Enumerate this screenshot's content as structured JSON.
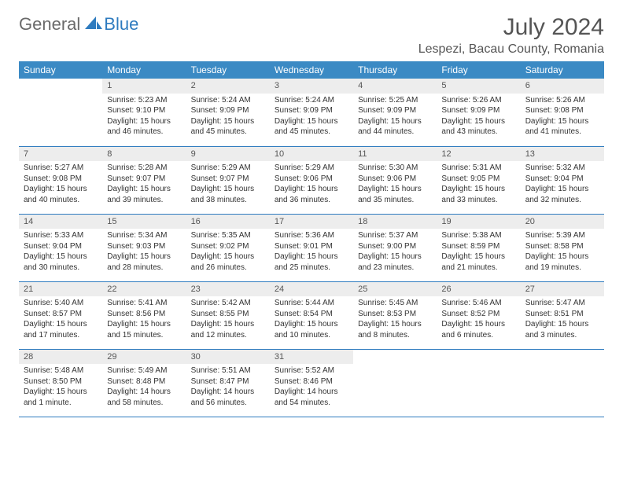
{
  "logo": {
    "text1": "General",
    "text2": "Blue"
  },
  "title": "July 2024",
  "location": "Lespezi, Bacau County, Romania",
  "colors": {
    "header_bg": "#3b8ac4",
    "header_text": "#ffffff",
    "daynum_bg": "#ededed",
    "border": "#2e7bbf",
    "logo_gray": "#6a6a6a",
    "logo_blue": "#2e7bbf"
  },
  "weekdays": [
    "Sunday",
    "Monday",
    "Tuesday",
    "Wednesday",
    "Thursday",
    "Friday",
    "Saturday"
  ],
  "days": [
    {
      "n": "",
      "sr": "",
      "ss": "",
      "dl": ""
    },
    {
      "n": "1",
      "sr": "Sunrise: 5:23 AM",
      "ss": "Sunset: 9:10 PM",
      "dl": "Daylight: 15 hours and 46 minutes."
    },
    {
      "n": "2",
      "sr": "Sunrise: 5:24 AM",
      "ss": "Sunset: 9:09 PM",
      "dl": "Daylight: 15 hours and 45 minutes."
    },
    {
      "n": "3",
      "sr": "Sunrise: 5:24 AM",
      "ss": "Sunset: 9:09 PM",
      "dl": "Daylight: 15 hours and 45 minutes."
    },
    {
      "n": "4",
      "sr": "Sunrise: 5:25 AM",
      "ss": "Sunset: 9:09 PM",
      "dl": "Daylight: 15 hours and 44 minutes."
    },
    {
      "n": "5",
      "sr": "Sunrise: 5:26 AM",
      "ss": "Sunset: 9:09 PM",
      "dl": "Daylight: 15 hours and 43 minutes."
    },
    {
      "n": "6",
      "sr": "Sunrise: 5:26 AM",
      "ss": "Sunset: 9:08 PM",
      "dl": "Daylight: 15 hours and 41 minutes."
    },
    {
      "n": "7",
      "sr": "Sunrise: 5:27 AM",
      "ss": "Sunset: 9:08 PM",
      "dl": "Daylight: 15 hours and 40 minutes."
    },
    {
      "n": "8",
      "sr": "Sunrise: 5:28 AM",
      "ss": "Sunset: 9:07 PM",
      "dl": "Daylight: 15 hours and 39 minutes."
    },
    {
      "n": "9",
      "sr": "Sunrise: 5:29 AM",
      "ss": "Sunset: 9:07 PM",
      "dl": "Daylight: 15 hours and 38 minutes."
    },
    {
      "n": "10",
      "sr": "Sunrise: 5:29 AM",
      "ss": "Sunset: 9:06 PM",
      "dl": "Daylight: 15 hours and 36 minutes."
    },
    {
      "n": "11",
      "sr": "Sunrise: 5:30 AM",
      "ss": "Sunset: 9:06 PM",
      "dl": "Daylight: 15 hours and 35 minutes."
    },
    {
      "n": "12",
      "sr": "Sunrise: 5:31 AM",
      "ss": "Sunset: 9:05 PM",
      "dl": "Daylight: 15 hours and 33 minutes."
    },
    {
      "n": "13",
      "sr": "Sunrise: 5:32 AM",
      "ss": "Sunset: 9:04 PM",
      "dl": "Daylight: 15 hours and 32 minutes."
    },
    {
      "n": "14",
      "sr": "Sunrise: 5:33 AM",
      "ss": "Sunset: 9:04 PM",
      "dl": "Daylight: 15 hours and 30 minutes."
    },
    {
      "n": "15",
      "sr": "Sunrise: 5:34 AM",
      "ss": "Sunset: 9:03 PM",
      "dl": "Daylight: 15 hours and 28 minutes."
    },
    {
      "n": "16",
      "sr": "Sunrise: 5:35 AM",
      "ss": "Sunset: 9:02 PM",
      "dl": "Daylight: 15 hours and 26 minutes."
    },
    {
      "n": "17",
      "sr": "Sunrise: 5:36 AM",
      "ss": "Sunset: 9:01 PM",
      "dl": "Daylight: 15 hours and 25 minutes."
    },
    {
      "n": "18",
      "sr": "Sunrise: 5:37 AM",
      "ss": "Sunset: 9:00 PM",
      "dl": "Daylight: 15 hours and 23 minutes."
    },
    {
      "n": "19",
      "sr": "Sunrise: 5:38 AM",
      "ss": "Sunset: 8:59 PM",
      "dl": "Daylight: 15 hours and 21 minutes."
    },
    {
      "n": "20",
      "sr": "Sunrise: 5:39 AM",
      "ss": "Sunset: 8:58 PM",
      "dl": "Daylight: 15 hours and 19 minutes."
    },
    {
      "n": "21",
      "sr": "Sunrise: 5:40 AM",
      "ss": "Sunset: 8:57 PM",
      "dl": "Daylight: 15 hours and 17 minutes."
    },
    {
      "n": "22",
      "sr": "Sunrise: 5:41 AM",
      "ss": "Sunset: 8:56 PM",
      "dl": "Daylight: 15 hours and 15 minutes."
    },
    {
      "n": "23",
      "sr": "Sunrise: 5:42 AM",
      "ss": "Sunset: 8:55 PM",
      "dl": "Daylight: 15 hours and 12 minutes."
    },
    {
      "n": "24",
      "sr": "Sunrise: 5:44 AM",
      "ss": "Sunset: 8:54 PM",
      "dl": "Daylight: 15 hours and 10 minutes."
    },
    {
      "n": "25",
      "sr": "Sunrise: 5:45 AM",
      "ss": "Sunset: 8:53 PM",
      "dl": "Daylight: 15 hours and 8 minutes."
    },
    {
      "n": "26",
      "sr": "Sunrise: 5:46 AM",
      "ss": "Sunset: 8:52 PM",
      "dl": "Daylight: 15 hours and 6 minutes."
    },
    {
      "n": "27",
      "sr": "Sunrise: 5:47 AM",
      "ss": "Sunset: 8:51 PM",
      "dl": "Daylight: 15 hours and 3 minutes."
    },
    {
      "n": "28",
      "sr": "Sunrise: 5:48 AM",
      "ss": "Sunset: 8:50 PM",
      "dl": "Daylight: 15 hours and 1 minute."
    },
    {
      "n": "29",
      "sr": "Sunrise: 5:49 AM",
      "ss": "Sunset: 8:48 PM",
      "dl": "Daylight: 14 hours and 58 minutes."
    },
    {
      "n": "30",
      "sr": "Sunrise: 5:51 AM",
      "ss": "Sunset: 8:47 PM",
      "dl": "Daylight: 14 hours and 56 minutes."
    },
    {
      "n": "31",
      "sr": "Sunrise: 5:52 AM",
      "ss": "Sunset: 8:46 PM",
      "dl": "Daylight: 14 hours and 54 minutes."
    },
    {
      "n": "",
      "sr": "",
      "ss": "",
      "dl": ""
    },
    {
      "n": "",
      "sr": "",
      "ss": "",
      "dl": ""
    },
    {
      "n": "",
      "sr": "",
      "ss": "",
      "dl": ""
    }
  ]
}
